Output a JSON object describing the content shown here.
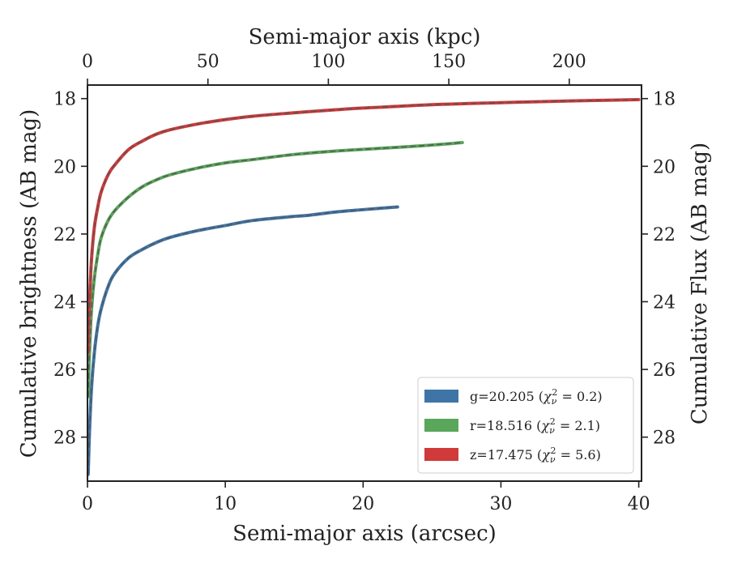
{
  "chart_data": {
    "type": "line",
    "xlabel_bottom": "Semi-major axis (arcsec)",
    "xlabel_top": "Semi-major axis (kpc)",
    "ylabel_left": "Cumulative brightness (AB mag)",
    "ylabel_right": "Cumulative Flux (AB mag)",
    "xlim": [
      0,
      40.2
    ],
    "ylim": [
      29.3,
      17.6
    ],
    "top_xlim": [
      0,
      230
    ],
    "x_ticks": [
      0,
      10,
      20,
      30,
      40
    ],
    "y_ticks": [
      18,
      20,
      22,
      24,
      26,
      28
    ],
    "top_ticks": [
      0,
      50,
      100,
      150,
      200
    ],
    "legend_position": "lower-right",
    "series": [
      {
        "name": "g=20.205 (χ_ν² = 0.2)",
        "legend_main": "g=20.205 (",
        "legend_chi": "χ",
        "legend_nu": "ν",
        "legend_sq": "2",
        "legend_tail": " = 0.2)",
        "color": "#3f75a6",
        "x": [
          0.05,
          0.15,
          0.3,
          0.5,
          0.75,
          1.0,
          1.5,
          2.0,
          3.0,
          4.0,
          5.0,
          6.0,
          8.0,
          10.0,
          12.0,
          15.0,
          16.0,
          18.0,
          20.0,
          22.5
        ],
        "y": [
          29.1,
          27.8,
          26.5,
          25.5,
          24.7,
          24.2,
          23.55,
          23.15,
          22.7,
          22.45,
          22.25,
          22.1,
          21.9,
          21.75,
          21.6,
          21.48,
          21.45,
          21.35,
          21.28,
          21.2
        ]
      },
      {
        "name": "r=18.516 (χ_ν² = 2.1)",
        "legend_main": "r=18.516 (",
        "legend_chi": "χ",
        "legend_nu": "ν",
        "legend_sq": "2",
        "legend_tail": " = 2.1)",
        "color": "#5aa65a",
        "x": [
          0.05,
          0.1,
          0.2,
          0.3,
          0.5,
          0.75,
          1.0,
          1.5,
          2.0,
          3.0,
          4.0,
          5.0,
          6.0,
          8.0,
          10.0,
          12.0,
          15.0,
          18.0,
          20.0,
          24.0,
          27.2
        ],
        "y": [
          26.8,
          26.0,
          25.0,
          24.2,
          23.3,
          22.6,
          22.1,
          21.6,
          21.3,
          20.9,
          20.6,
          20.4,
          20.25,
          20.05,
          19.9,
          19.8,
          19.65,
          19.55,
          19.5,
          19.4,
          19.3
        ]
      },
      {
        "name": "z=17.475 (χ_ν² = 5.6)",
        "legend_main": "z=17.475 (",
        "legend_chi": "χ",
        "legend_nu": "ν",
        "legend_sq": "2",
        "legend_tail": " = 5.6)",
        "color": "#d03a3a",
        "x": [
          0.05,
          0.1,
          0.2,
          0.3,
          0.5,
          0.75,
          1.0,
          1.5,
          2.0,
          3.0,
          4.0,
          5.0,
          6.0,
          8.0,
          10.0,
          12.0,
          15.0,
          18.0,
          20.0,
          25.0,
          30.0,
          35.0,
          40.0
        ],
        "y": [
          25.5,
          24.5,
          23.5,
          22.7,
          21.8,
          21.2,
          20.75,
          20.25,
          19.95,
          19.5,
          19.25,
          19.05,
          18.92,
          18.75,
          18.62,
          18.52,
          18.42,
          18.33,
          18.28,
          18.18,
          18.12,
          18.07,
          18.03
        ]
      }
    ]
  }
}
